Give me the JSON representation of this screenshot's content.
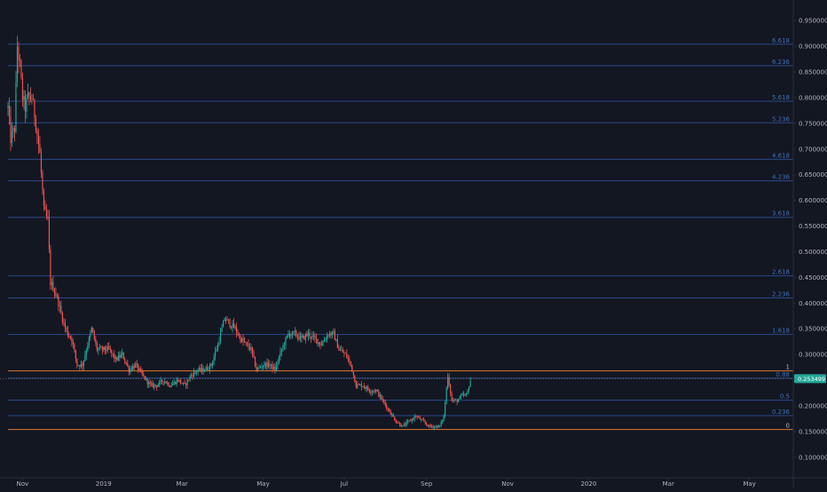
{
  "colors": {
    "background": "#131722",
    "up": "#26a69a",
    "down": "#ef5350",
    "fib_line": "#2a4a8a",
    "fib_text": "#3e6fb4",
    "fib_boundary": "#d97a30",
    "axis_text": "#b2b5be",
    "axis_line": "#2a2e39",
    "price_badge": "#26a69a"
  },
  "chart_data": {
    "type": "candlestick",
    "title": "",
    "xlabel": "",
    "ylabel": "",
    "grid": false,
    "x_range": [
      "2018-10-15",
      "2020-06-03"
    ],
    "ylim": [
      0.06,
      0.99
    ],
    "y_ticks": [
      {
        "value": 0.95,
        "label": "0.950000"
      },
      {
        "value": 0.9,
        "label": "0.900000"
      },
      {
        "value": 0.85,
        "label": "0.850000"
      },
      {
        "value": 0.8,
        "label": "0.800000"
      },
      {
        "value": 0.75,
        "label": "0.750000"
      },
      {
        "value": 0.7,
        "label": "0.700000"
      },
      {
        "value": 0.65,
        "label": "0.650000"
      },
      {
        "value": 0.6,
        "label": "0.600000"
      },
      {
        "value": 0.55,
        "label": "0.550000"
      },
      {
        "value": 0.5,
        "label": "0.500000"
      },
      {
        "value": 0.45,
        "label": "0.450000"
      },
      {
        "value": 0.4,
        "label": "0.400000"
      },
      {
        "value": 0.35,
        "label": "0.350000"
      },
      {
        "value": 0.3,
        "label": "0.300000"
      },
      {
        "value": 0.2,
        "label": "0.200000"
      },
      {
        "value": 0.15,
        "label": "0.150000"
      },
      {
        "value": 0.1,
        "label": "0.100000"
      }
    ],
    "x_ticks": [
      {
        "date": "2018-11-01",
        "label": "Nov"
      },
      {
        "date": "2019-01-01",
        "label": "2019"
      },
      {
        "date": "2019-03-01",
        "label": "Mar"
      },
      {
        "date": "2019-05-01",
        "label": "May"
      },
      {
        "date": "2019-07-01",
        "label": "Jul"
      },
      {
        "date": "2019-09-01",
        "label": "Sep"
      },
      {
        "date": "2019-11-01",
        "label": "Nov"
      },
      {
        "date": "2020-01-01",
        "label": "2020"
      },
      {
        "date": "2020-03-01",
        "label": "Mar"
      },
      {
        "date": "2020-05-01",
        "label": "May"
      }
    ],
    "current_price": {
      "value": 0.253,
      "label": "0.253499"
    },
    "fib_levels": [
      {
        "label": "6.618",
        "value": 0.904,
        "boundary": false
      },
      {
        "label": "6.236",
        "value": 0.862,
        "boundary": false
      },
      {
        "label": "5.618",
        "value": 0.793,
        "boundary": false
      },
      {
        "label": "5.236",
        "value": 0.751,
        "boundary": false
      },
      {
        "label": "4.618",
        "value": 0.68,
        "boundary": false
      },
      {
        "label": "4.236",
        "value": 0.638,
        "boundary": false
      },
      {
        "label": "3.618",
        "value": 0.567,
        "boundary": false
      },
      {
        "label": "2.618",
        "value": 0.453,
        "boundary": false
      },
      {
        "label": "2.236",
        "value": 0.41,
        "boundary": false
      },
      {
        "label": "1.618",
        "value": 0.339,
        "boundary": false
      },
      {
        "label": "1",
        "value": 0.268,
        "boundary": true
      },
      {
        "label": "0.88",
        "value": 0.254,
        "boundary": false
      },
      {
        "label": "0.5",
        "value": 0.211,
        "boundary": false
      },
      {
        "label": "0.236",
        "value": 0.181,
        "boundary": false
      },
      {
        "label": "0",
        "value": 0.154,
        "boundary": true
      }
    ],
    "price_path": [
      [
        "2018-10-21",
        0.78
      ],
      [
        "2018-10-23",
        0.72
      ],
      [
        "2018-10-26",
        0.74
      ],
      [
        "2018-10-28",
        0.9
      ],
      [
        "2018-10-30",
        0.86
      ],
      [
        "2018-11-01",
        0.8
      ],
      [
        "2018-11-03",
        0.78
      ],
      [
        "2018-11-05",
        0.8
      ],
      [
        "2018-11-08",
        0.8
      ],
      [
        "2018-11-11",
        0.75
      ],
      [
        "2018-11-14",
        0.69
      ],
      [
        "2018-11-17",
        0.58
      ],
      [
        "2018-11-20",
        0.56
      ],
      [
        "2018-11-22",
        0.44
      ],
      [
        "2018-11-24",
        0.43
      ],
      [
        "2018-11-27",
        0.41
      ],
      [
        "2018-11-29",
        0.39
      ],
      [
        "2018-12-02",
        0.36
      ],
      [
        "2018-12-05",
        0.34
      ],
      [
        "2018-12-08",
        0.33
      ],
      [
        "2018-12-12",
        0.28
      ],
      [
        "2018-12-16",
        0.28
      ],
      [
        "2018-12-19",
        0.31
      ],
      [
        "2018-12-23",
        0.35
      ],
      [
        "2018-12-27",
        0.31
      ],
      [
        "2019-01-01",
        0.31
      ],
      [
        "2019-01-05",
        0.31
      ],
      [
        "2019-01-10",
        0.29
      ],
      [
        "2019-01-15",
        0.3
      ],
      [
        "2019-01-20",
        0.27
      ],
      [
        "2019-01-25",
        0.28
      ],
      [
        "2019-01-30",
        0.26
      ],
      [
        "2019-02-05",
        0.24
      ],
      [
        "2019-02-10",
        0.24
      ],
      [
        "2019-02-15",
        0.25
      ],
      [
        "2019-02-20",
        0.24
      ],
      [
        "2019-02-26",
        0.25
      ],
      [
        "2019-03-03",
        0.24
      ],
      [
        "2019-03-08",
        0.26
      ],
      [
        "2019-03-13",
        0.27
      ],
      [
        "2019-03-18",
        0.27
      ],
      [
        "2019-03-23",
        0.28
      ],
      [
        "2019-03-28",
        0.32
      ],
      [
        "2019-04-02",
        0.37
      ],
      [
        "2019-04-06",
        0.36
      ],
      [
        "2019-04-10",
        0.35
      ],
      [
        "2019-04-14",
        0.33
      ],
      [
        "2019-04-18",
        0.32
      ],
      [
        "2019-04-22",
        0.31
      ],
      [
        "2019-04-26",
        0.27
      ],
      [
        "2019-05-01",
        0.28
      ],
      [
        "2019-05-06",
        0.28
      ],
      [
        "2019-05-10",
        0.27
      ],
      [
        "2019-05-15",
        0.31
      ],
      [
        "2019-05-20",
        0.34
      ],
      [
        "2019-05-25",
        0.34
      ],
      [
        "2019-05-30",
        0.33
      ],
      [
        "2019-06-04",
        0.34
      ],
      [
        "2019-06-09",
        0.33
      ],
      [
        "2019-06-14",
        0.32
      ],
      [
        "2019-06-19",
        0.34
      ],
      [
        "2019-06-23",
        0.34
      ],
      [
        "2019-06-27",
        0.31
      ],
      [
        "2019-07-02",
        0.3
      ],
      [
        "2019-07-06",
        0.28
      ],
      [
        "2019-07-10",
        0.24
      ],
      [
        "2019-07-15",
        0.24
      ],
      [
        "2019-07-20",
        0.23
      ],
      [
        "2019-07-25",
        0.23
      ],
      [
        "2019-07-30",
        0.21
      ],
      [
        "2019-08-04",
        0.19
      ],
      [
        "2019-08-09",
        0.17
      ],
      [
        "2019-08-14",
        0.16
      ],
      [
        "2019-08-19",
        0.17
      ],
      [
        "2019-08-24",
        0.18
      ],
      [
        "2019-08-29",
        0.17
      ],
      [
        "2019-09-03",
        0.16
      ],
      [
        "2019-09-07",
        0.16
      ],
      [
        "2019-09-11",
        0.16
      ],
      [
        "2019-09-14",
        0.18
      ],
      [
        "2019-09-17",
        0.26
      ],
      [
        "2019-09-20",
        0.21
      ],
      [
        "2019-09-24",
        0.21
      ],
      [
        "2019-09-28",
        0.22
      ],
      [
        "2019-10-01",
        0.22
      ],
      [
        "2019-10-04",
        0.25
      ]
    ]
  }
}
